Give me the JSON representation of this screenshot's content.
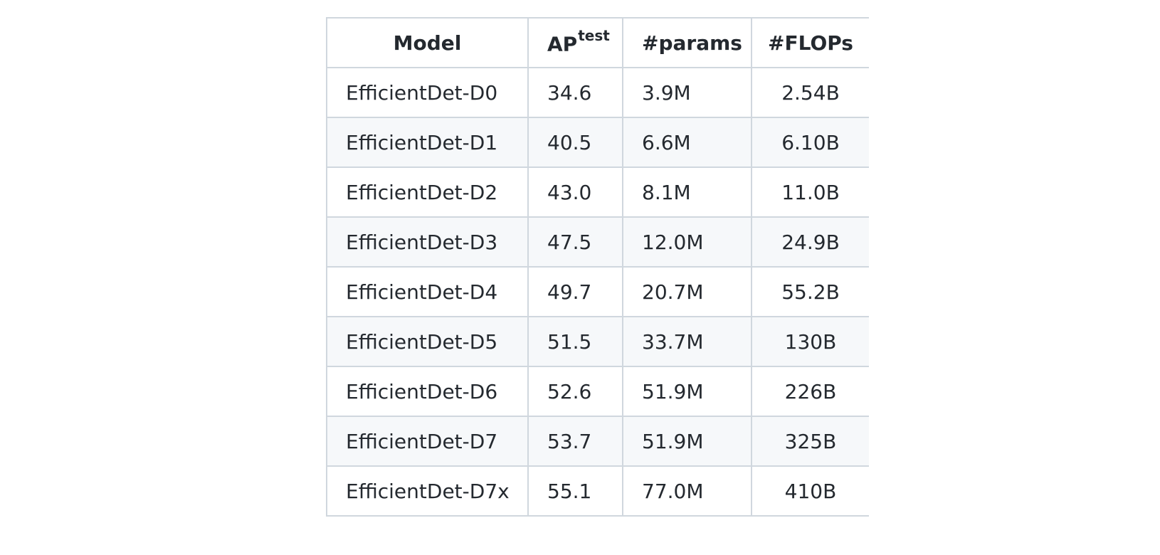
{
  "table": {
    "headers": {
      "model": "Model",
      "ap": "AP",
      "ap_sup": "test",
      "params": "#params",
      "flops": "#FLOPs"
    },
    "rows": [
      {
        "model": "EfficientDet-D0",
        "ap": "34.6",
        "params": "3.9M",
        "flops": "2.54B"
      },
      {
        "model": "EfficientDet-D1",
        "ap": "40.5",
        "params": "6.6M",
        "flops": "6.10B"
      },
      {
        "model": "EfficientDet-D2",
        "ap": "43.0",
        "params": "8.1M",
        "flops": "11.0B"
      },
      {
        "model": "EfficientDet-D3",
        "ap": "47.5",
        "params": "12.0M",
        "flops": "24.9B"
      },
      {
        "model": "EfficientDet-D4",
        "ap": "49.7",
        "params": "20.7M",
        "flops": "55.2B"
      },
      {
        "model": "EfficientDet-D5",
        "ap": "51.5",
        "params": "33.7M",
        "flops": "130B"
      },
      {
        "model": "EfficientDet-D6",
        "ap": "52.6",
        "params": "51.9M",
        "flops": "226B"
      },
      {
        "model": "EfficientDet-D7",
        "ap": "53.7",
        "params": "51.9M",
        "flops": "325B"
      },
      {
        "model": "EfficientDet-D7x",
        "ap": "55.1",
        "params": "77.0M",
        "flops": "410B"
      }
    ]
  },
  "colors": {
    "border": "#d0d7de",
    "stripe": "#f6f8fa",
    "text": "#24292f"
  }
}
